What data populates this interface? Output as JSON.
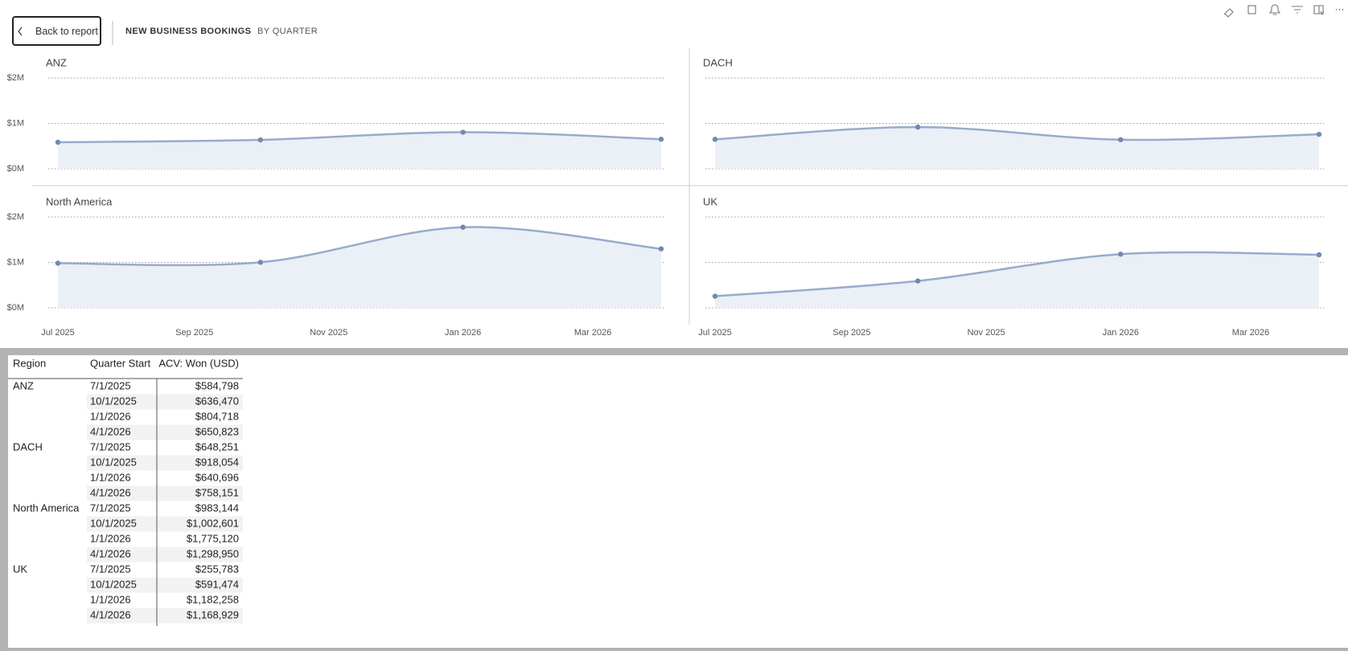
{
  "header": {
    "back_button": "Back to report",
    "title": "NEW BUSINESS BOOKINGS",
    "subtitle": "BY QUARTER"
  },
  "chart_data": {
    "type": "area",
    "x": [
      "2025-07-01",
      "2025-10-01",
      "2026-01-01",
      "2026-04-01"
    ],
    "xlim": [
      "2025-07-01",
      "2026-04-01"
    ],
    "xticks": [
      {
        "value": "2025-07-01",
        "label": "Jul 2025"
      },
      {
        "value": "2025-09-01",
        "label": "Sep 2025"
      },
      {
        "value": "2025-11-01",
        "label": "Nov 2025"
      },
      {
        "value": "2026-01-01",
        "label": "Jan 2026"
      },
      {
        "value": "2026-03-01",
        "label": "Mar 2026"
      }
    ],
    "ylim": [
      0,
      2000000
    ],
    "yticks": [
      {
        "value": 0,
        "label": "$0M"
      },
      {
        "value": 1000000,
        "label": "$1M"
      },
      {
        "value": 2000000,
        "label": "$2M"
      }
    ],
    "grid": true,
    "marker_color": "#7089b4",
    "area_color": "#ebeff6",
    "series": [
      {
        "name": "ANZ",
        "color": "#98abcb",
        "values": [
          584798,
          636470,
          804718,
          650823
        ]
      },
      {
        "name": "DACH",
        "color": "#98abcb",
        "values": [
          648251,
          918054,
          640696,
          758151
        ]
      },
      {
        "name": "North America",
        "color": "#98abcb",
        "values": [
          983144,
          1002601,
          1775120,
          1298950
        ]
      },
      {
        "name": "UK",
        "color": "#98abcb",
        "values": [
          255783,
          591474,
          1182258,
          1168929
        ]
      }
    ]
  },
  "table": {
    "columns": [
      "Region",
      "Quarter Start",
      "ACV: Won (USD)"
    ],
    "groups": [
      {
        "region": "ANZ",
        "rows": [
          [
            "7/1/2025",
            "$584,798"
          ],
          [
            "10/1/2025",
            "$636,470"
          ],
          [
            "1/1/2026",
            "$804,718"
          ],
          [
            "4/1/2026",
            "$650,823"
          ]
        ]
      },
      {
        "region": "DACH",
        "rows": [
          [
            "7/1/2025",
            "$648,251"
          ],
          [
            "10/1/2025",
            "$918,054"
          ],
          [
            "1/1/2026",
            "$640,696"
          ],
          [
            "4/1/2026",
            "$758,151"
          ]
        ]
      },
      {
        "region": "North America",
        "rows": [
          [
            "7/1/2025",
            "$983,144"
          ],
          [
            "10/1/2025",
            "$1,002,601"
          ],
          [
            "1/1/2026",
            "$1,775,120"
          ],
          [
            "4/1/2026",
            "$1,298,950"
          ]
        ]
      },
      {
        "region": "UK",
        "rows": [
          [
            "7/1/2025",
            "$255,783"
          ],
          [
            "10/1/2025",
            "$591,474"
          ],
          [
            "1/1/2026",
            "$1,182,258"
          ],
          [
            "4/1/2026",
            "$1,168,929"
          ]
        ]
      }
    ]
  }
}
